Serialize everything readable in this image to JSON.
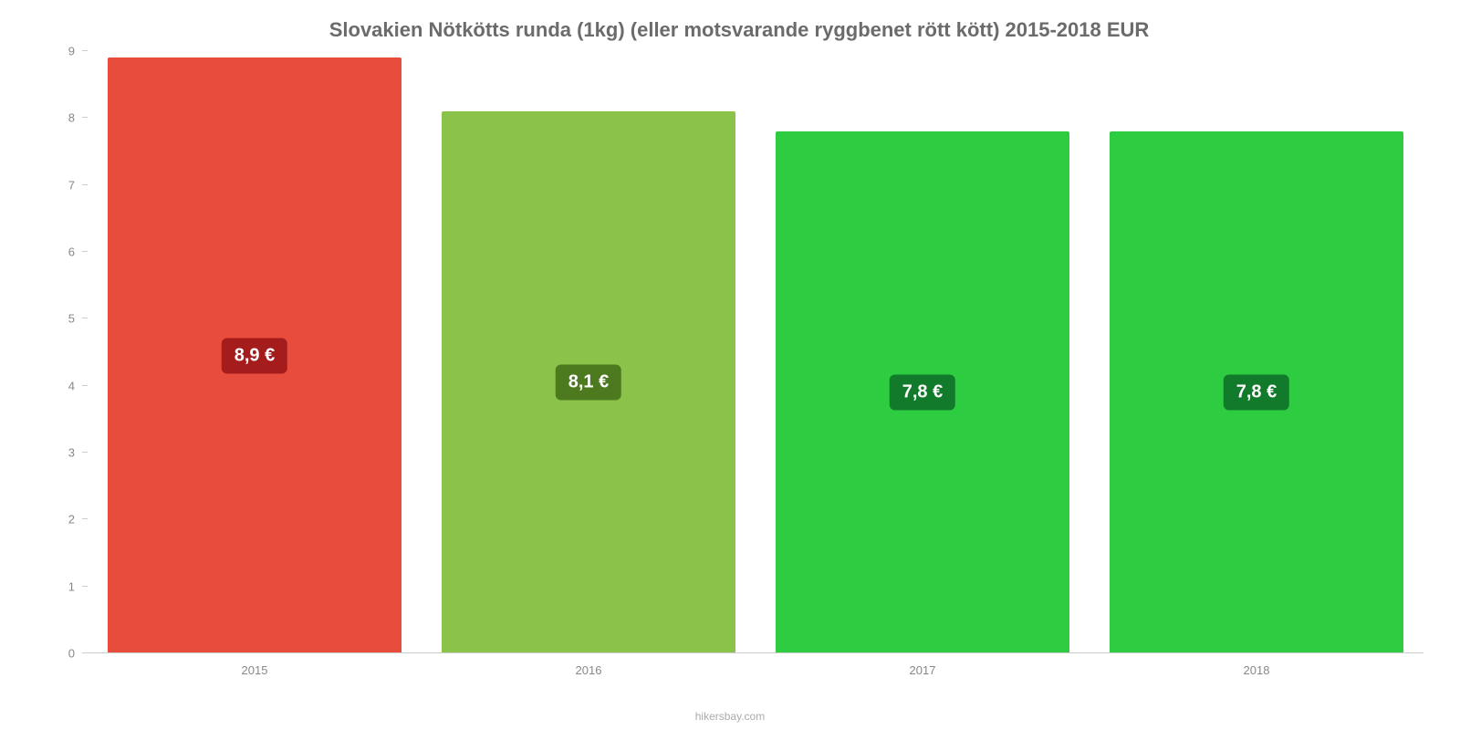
{
  "chart": {
    "type": "bar",
    "title": "Slovakien Nötkötts runda (1kg) (eller motsvarande ryggbenet rött kött) 2015-2018 EUR",
    "title_color": "#6b6b6b",
    "title_fontsize": 22,
    "background_color": "#ffffff",
    "y_axis": {
      "min": 0,
      "max": 9,
      "ticks": [
        0,
        1,
        2,
        3,
        4,
        5,
        6,
        7,
        8,
        9
      ],
      "tick_color": "#888888",
      "tick_fontsize": 13
    },
    "x_axis": {
      "categories": [
        "2015",
        "2016",
        "2017",
        "2018"
      ],
      "label_color": "#888888",
      "label_fontsize": 13
    },
    "bars": [
      {
        "value": 8.9,
        "display": "8,9 €",
        "fill": "#e74c3c",
        "label_bg": "#a51c1c"
      },
      {
        "value": 8.1,
        "display": "8,1 €",
        "fill": "#8bc34a",
        "label_bg": "#4e7a1f"
      },
      {
        "value": 7.8,
        "display": "7,8 €",
        "fill": "#2ecc40",
        "label_bg": "#127a2b"
      },
      {
        "value": 7.8,
        "display": "7,8 €",
        "fill": "#2ecc40",
        "label_bg": "#127a2b"
      }
    ],
    "bar_width_pct": 88,
    "label_fontsize": 20,
    "label_text_color": "#ffffff",
    "axis_line_color": "#cccccc"
  },
  "footer": {
    "text": "hikersbay.com",
    "color": "#aaaaaa",
    "fontsize": 12
  }
}
